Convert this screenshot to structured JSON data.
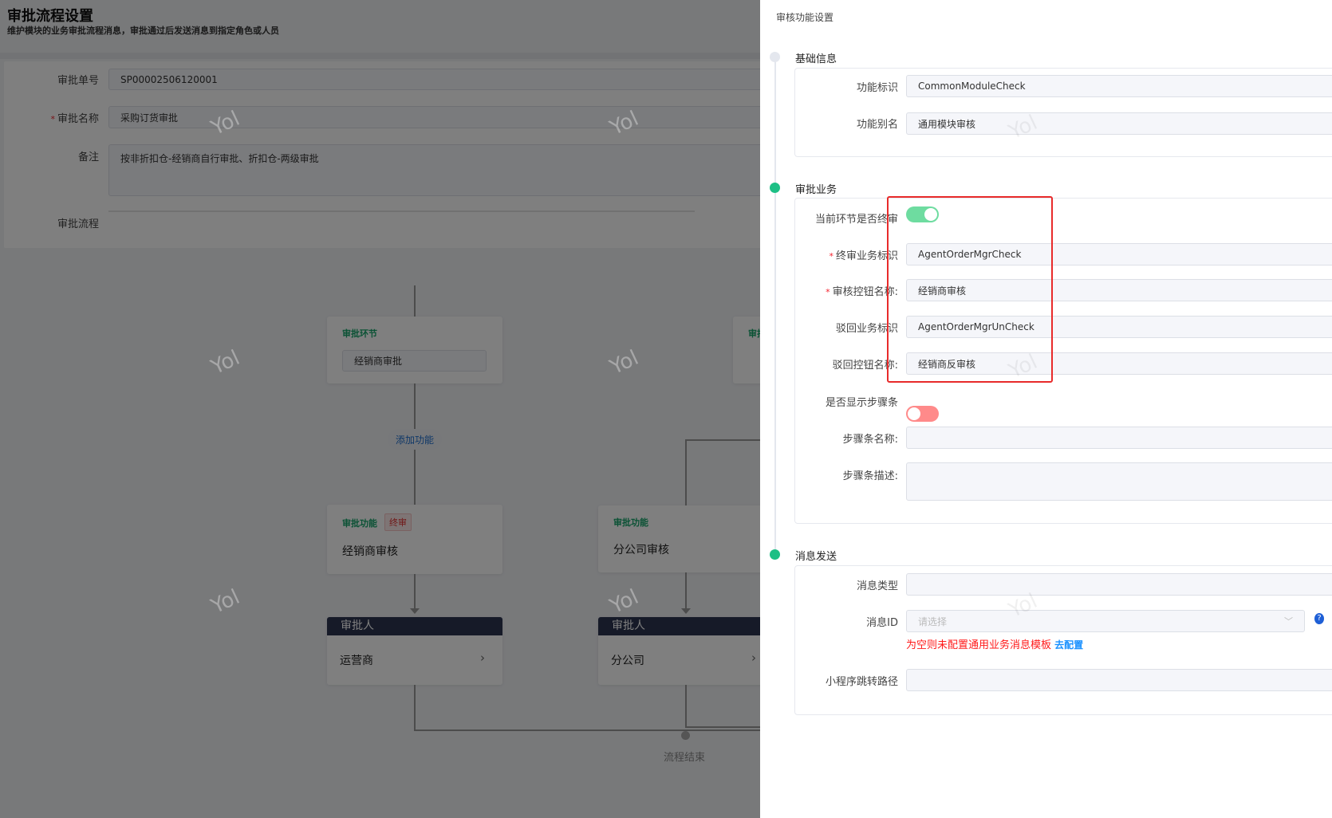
{
  "page": {
    "title": "审批流程设置",
    "subtitle": "维护模块的业务审批流程消息，审批通过后发送消息到指定角色或人员"
  },
  "form": {
    "approval_no": {
      "label": "审批单号",
      "value": "SP00002506120001"
    },
    "approval_name": {
      "label": "审批名称",
      "value": "采购订货审批",
      "required": true
    },
    "remark": {
      "label": "备注",
      "value": "按非折扣仓-经销商自行审批、折扣仓-两级审批"
    },
    "flow_label": "审批流程"
  },
  "flow": {
    "stage_card": {
      "title": "审批环节",
      "value": "经销商审批"
    },
    "stage_card_2_title": "审批环节",
    "add_function": "添加功能",
    "function_cards": [
      {
        "title": "审批功能",
        "badge": "终审",
        "name": "经销商审核"
      },
      {
        "title": "审批功能",
        "name": "分公司审核"
      }
    ],
    "approver_cards": [
      {
        "header": "审批人",
        "value": "运营商"
      },
      {
        "header": "审批人",
        "value": "分公司"
      }
    ],
    "end_label": "流程结束",
    "watermark": "Yol"
  },
  "drawer": {
    "title": "审核功能设置",
    "sections": {
      "basic": {
        "title": "基础信息",
        "status": "inactive",
        "fields": [
          {
            "label": "功能标识",
            "value": "CommonModuleCheck"
          },
          {
            "label": "功能别名",
            "value": "通用模块审核"
          }
        ]
      },
      "business": {
        "title": "审批业务",
        "status": "active",
        "is_final": {
          "label": "当前环节是否终审",
          "on": true
        },
        "fields": [
          {
            "label": "终审业务标识",
            "value": "AgentOrderMgrCheck",
            "required": true
          },
          {
            "label": "审核控钮名称:",
            "value": "经销商审核",
            "required": true
          },
          {
            "label": "驳回业务标识",
            "value": "AgentOrderMgrUnCheck"
          },
          {
            "label": "驳回控钮名称:",
            "value": "经销商反审核"
          }
        ],
        "show_steps": {
          "label": "是否显示步骤条",
          "on": false
        },
        "step_name": {
          "label": "步骤条名称:",
          "value": ""
        },
        "step_desc": {
          "label": "步骤条描述:",
          "value": ""
        }
      },
      "message": {
        "title": "消息发送",
        "status": "active",
        "msg_type": {
          "label": "消息类型",
          "value": ""
        },
        "msg_id": {
          "label": "消息ID",
          "placeholder": "请选择"
        },
        "hint": "为空则未配置通用业务消息模板",
        "hint_link": "去配置",
        "mp_path": {
          "label": "小程序跳转路径",
          "value": ""
        }
      }
    }
  },
  "colors": {
    "active": "#1dbf85",
    "toggle_on": "#6edca0",
    "toggle_off": "#ff8a8a",
    "highlight": "#e82b2b",
    "link": "#1890ff",
    "error": "#ff1a1a",
    "approver_header": "#2c3550"
  }
}
